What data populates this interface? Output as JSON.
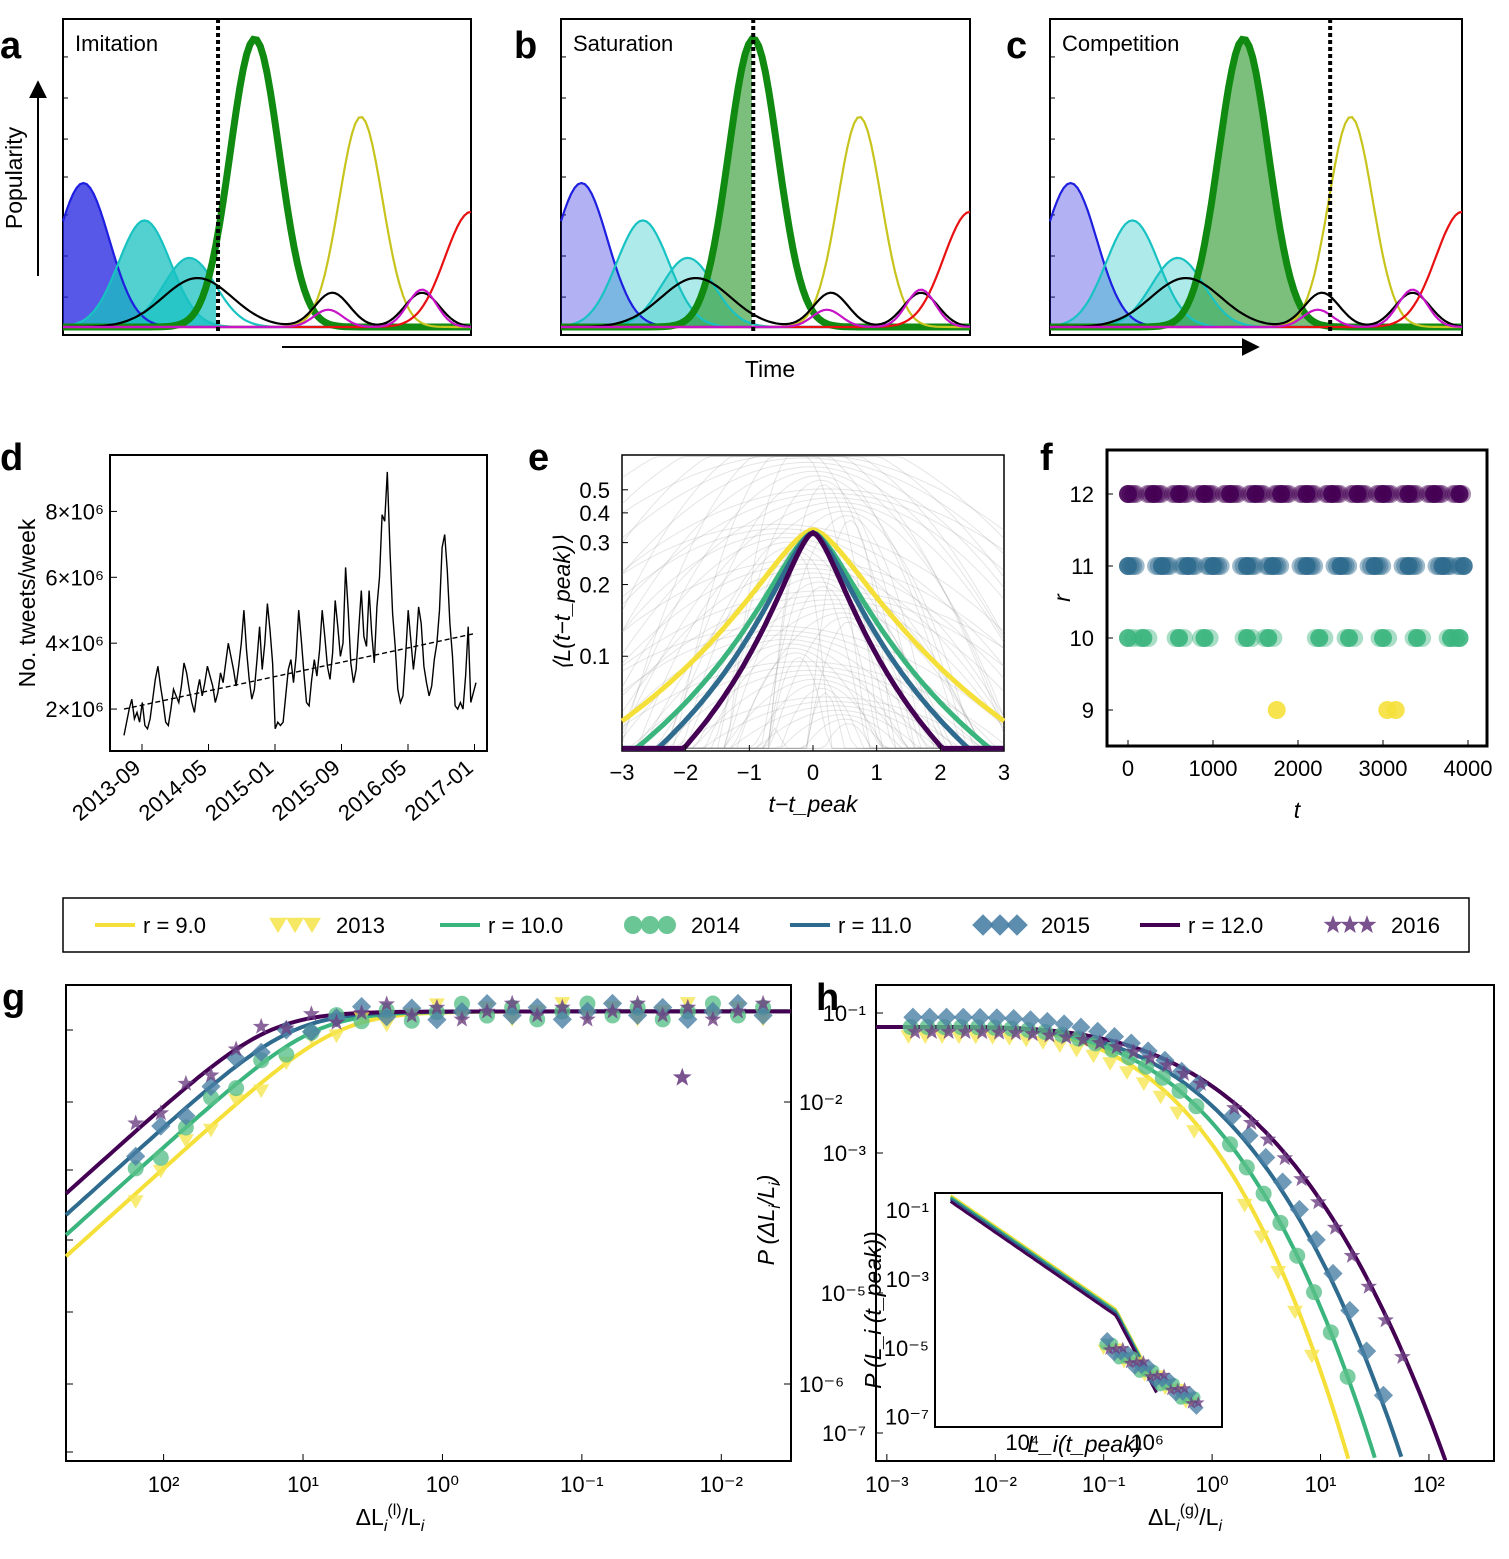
{
  "panel_labels": {
    "a": "a",
    "b": "b",
    "c": "c",
    "d": "d",
    "e": "e",
    "f": "f",
    "g": "g",
    "h": "h"
  },
  "colors": {
    "r9": "#f5e03a",
    "r10": "#3bb57e",
    "r11": "#2f6b8e",
    "r12": "#440154",
    "y2013": "#f6e653",
    "y2014": "#5bc08a",
    "y2015": "#4a7fa5",
    "y2016": "#6b3f82"
  },
  "chart_data": [
    {
      "id": "a-c",
      "type": "area",
      "title_axis": {
        "ylabel": "Popularity",
        "xlabel": "Time"
      },
      "panels": [
        {
          "title": "Imitation",
          "current_time": 0.38
        },
        {
          "title": "Saturation",
          "current_time": 0.47
        },
        {
          "title": "Competition",
          "current_time": 0.68
        }
      ],
      "series": [
        {
          "name": "blue",
          "color": "#1f1fe0",
          "peak_t": 0.05,
          "height": 0.5
        },
        {
          "name": "cyan",
          "color": "#19c2c2",
          "peak_t": 0.2,
          "height": 0.37
        },
        {
          "name": "teal2",
          "color": "#19c2c2",
          "peak_t": 0.31,
          "height": 0.24
        },
        {
          "name": "green",
          "color": "#108a10",
          "peak_t": 0.47,
          "height": 1.0
        },
        {
          "name": "olive",
          "color": "#c8c41e",
          "peak_t": 0.73,
          "height": 0.73
        },
        {
          "name": "black",
          "color": "#000000",
          "peak_t": 0.3,
          "height": 0.17
        },
        {
          "name": "red",
          "color": "#e81010",
          "peak_t": 1.0,
          "height": 0.4
        },
        {
          "name": "magenta",
          "color": "#c814c8",
          "peak_t": 0.88,
          "height": 0.13
        }
      ]
    },
    {
      "id": "d",
      "type": "line",
      "ylabel": "No. tweets/week",
      "xlabel": "",
      "x_ticks": [
        "2013-09",
        "2014-05",
        "2015-01",
        "2015-09",
        "2016-05",
        "2017-01"
      ],
      "y_ticks": [
        "2×10⁶",
        "4×10⁶",
        "6×10⁶",
        "8×10⁶"
      ],
      "ylim": [
        1.0,
        9.5
      ],
      "values": [
        1.2,
        1.6,
        2.0,
        2.3,
        1.7,
        1.9,
        1.6,
        2.2,
        1.5,
        1.4,
        1.7,
        2.3,
        2.9,
        3.3,
        2.7,
        2.2,
        1.6,
        1.5,
        2.0,
        2.6,
        2.4,
        2.2,
        2.7,
        3.4,
        3.1,
        2.6,
        2.2,
        1.9,
        2.5,
        2.9,
        2.4,
        2.8,
        3.3,
        3.0,
        2.7,
        2.2,
        2.5,
        3.1,
        2.8,
        3.4,
        4.0,
        3.6,
        3.2,
        2.7,
        3.3,
        4.0,
        5.0,
        3.8,
        2.9,
        2.3,
        2.6,
        3.5,
        4.5,
        3.2,
        4.0,
        5.2,
        4.4,
        3.4,
        1.4,
        1.6,
        1.5,
        1.6,
        2.4,
        3.2,
        3.5,
        2.8,
        3.6,
        5.0,
        4.1,
        3.1,
        2.2,
        2.1,
        2.9,
        3.5,
        3.0,
        3.8,
        5.0,
        4.2,
        3.3,
        2.9,
        3.7,
        5.3,
        4.5,
        3.6,
        4.0,
        6.3,
        5.0,
        3.4,
        2.8,
        3.2,
        4.4,
        5.6,
        4.2,
        3.9,
        5.6,
        4.3,
        3.4,
        5.1,
        6.0,
        7.9,
        7.7,
        9.2,
        6.8,
        4.9,
        3.9,
        2.6,
        2.2,
        2.4,
        3.6,
        5.0,
        4.1,
        3.2,
        3.9,
        5.1,
        4.6,
        3.3,
        2.8,
        2.4,
        2.7,
        3.5,
        4.0,
        5.0,
        6.9,
        7.3,
        6.2,
        4.6,
        3.6,
        2.1,
        2.0,
        2.2,
        2.0,
        3.0,
        4.5,
        2.2,
        2.5,
        2.8
      ],
      "trend": [
        2.0,
        4.3
      ]
    },
    {
      "id": "e",
      "type": "line",
      "ylabel": "⟨L(t−t_peak)⟩",
      "xlabel": "t−t_peak",
      "xlim": [
        -3,
        3
      ],
      "log_y": true,
      "x_ticks": [
        "−3",
        "−2",
        "−1",
        "0",
        "1",
        "2",
        "3"
      ],
      "y_ticks": [
        "0.1",
        "0.2",
        "0.3",
        "0.4",
        "0.5"
      ],
      "series": [
        {
          "name": "r = 9.0",
          "color": "#f5e03a",
          "peak": 0.34,
          "width": 1.05
        },
        {
          "name": "r = 10.0",
          "color": "#3bb57e",
          "peak": 0.33,
          "width": 0.82
        },
        {
          "name": "r = 11.0",
          "color": "#2f6b8e",
          "peak": 0.33,
          "width": 0.72
        },
        {
          "name": "r = 12.0",
          "color": "#440154",
          "peak": 0.33,
          "width": 0.6
        }
      ]
    },
    {
      "id": "f",
      "type": "scatter",
      "ylabel": "r",
      "xlabel": "t",
      "xlim": [
        -200,
        4000
      ],
      "ylim": [
        8.5,
        12.6
      ],
      "x_ticks": [
        "0",
        "1000",
        "2000",
        "3000",
        "4000"
      ],
      "y_ticks": [
        "9",
        "10",
        "11",
        "12"
      ],
      "series": [
        {
          "name": "r = 12",
          "color": "#440154",
          "y": 12,
          "x": [
            0,
            300,
            600,
            900,
            1200,
            1500,
            1800,
            2100,
            2400,
            2700,
            3000,
            3300,
            3600,
            3900
          ]
        },
        {
          "name": "r = 11",
          "color": "#2f6b8e",
          "y": 11,
          "x": [
            0,
            400,
            700,
            1000,
            1400,
            1700,
            2100,
            2500,
            2900,
            3300,
            3700,
            3950
          ]
        },
        {
          "name": "r = 10",
          "color": "#3bb57e",
          "y": 10,
          "x": [
            0,
            180,
            600,
            900,
            1400,
            1650,
            2250,
            2600,
            3000,
            3400,
            3800,
            3900
          ]
        },
        {
          "name": "r = 9",
          "color": "#f5e03a",
          "y": 9,
          "x": [
            1750,
            3050,
            3150
          ]
        }
      ]
    },
    {
      "id": "legend",
      "type": "legend",
      "entries": [
        {
          "sym": "line",
          "text": "r = 9.0",
          "color": "#f5e03a"
        },
        {
          "sym": "tri",
          "text": "2013",
          "color": "#f6e653"
        },
        {
          "sym": "line",
          "text": "r = 10.0",
          "color": "#3bb57e"
        },
        {
          "sym": "circle",
          "text": "2014",
          "color": "#5bc08a"
        },
        {
          "sym": "line",
          "text": "r = 11.0",
          "color": "#2f6b8e"
        },
        {
          "sym": "diamond",
          "text": "2015",
          "color": "#4a7fa5"
        },
        {
          "sym": "line",
          "text": "r = 12.0",
          "color": "#440154"
        },
        {
          "sym": "star",
          "text": "2016",
          "color": "#6b3f82"
        }
      ]
    },
    {
      "id": "g",
      "type": "scatter+line",
      "ylabel": "P (ΔL_i/L_i)",
      "xlabel": "ΔL_i^(l)/L_i",
      "log_x": true,
      "log_y": true,
      "x_ticks": [
        "10²",
        "10¹",
        "10⁰",
        "10⁻¹",
        "10⁻²"
      ],
      "y_ticks": [
        "10⁻²",
        "10⁻⁶"
      ]
    },
    {
      "id": "h",
      "type": "scatter+line",
      "ylabel": "",
      "xlabel": "ΔL_i^(g)/L_i",
      "log_x": true,
      "log_y": true,
      "x_ticks": [
        "10⁻³",
        "10⁻²",
        "10⁻¹",
        "10⁰",
        "10¹",
        "10²"
      ],
      "y_ticks": [
        "10⁻¹",
        "10⁻³",
        "10⁻⁵",
        "10⁻⁷"
      ],
      "inset": {
        "ylabel": "P (L_i (t_peak))",
        "xlabel": "L_i(t_peak)",
        "x_ticks": [
          "10⁴",
          "10⁶"
        ],
        "y_ticks": [
          "10⁻¹",
          "10⁻³",
          "10⁻⁵",
          "10⁻⁷"
        ]
      }
    }
  ]
}
